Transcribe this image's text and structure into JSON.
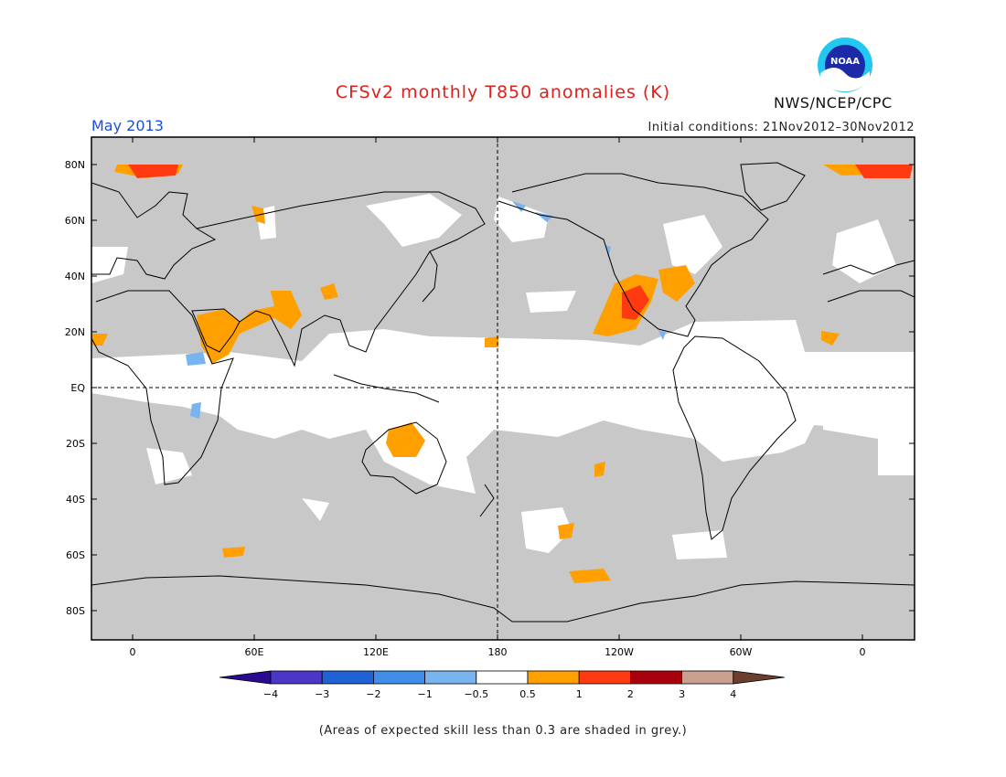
{
  "header": {
    "title": "CFSv2 monthly T850 anomalies (K)",
    "month": "May 2013",
    "initial_conditions": "Initial conditions: 21Nov2012–30Nov2012",
    "agency": "NWS/NCEP/CPC",
    "logo_text": "NOAA"
  },
  "map": {
    "lat_ticks": [
      "80N",
      "60N",
      "40N",
      "20N",
      "EQ",
      "20S",
      "40S",
      "60S",
      "80S"
    ],
    "lon_ticks": [
      "0",
      "60E",
      "120E",
      "180",
      "120W",
      "60W",
      "0"
    ],
    "colors": {
      "skill_grey": "#c8c8c8",
      "neutral": "#ffffff",
      "orange": "#ffa000",
      "red_orange": "#ff3a10",
      "light_blue": "#78b4f0",
      "land_line": "#000000"
    },
    "anomaly_regions": [
      {
        "name": "arctic-greenland-west",
        "category": "1 to 2"
      },
      {
        "name": "arctic-greenland-east",
        "category": "1 to 2"
      },
      {
        "name": "arabia-horn-africa",
        "category": "0.5 to 1"
      },
      {
        "name": "central-asia",
        "category": "0.5 to 1"
      },
      {
        "name": "australia",
        "category": "0.5 to 1"
      },
      {
        "name": "western-north-america",
        "category": "1 to 2"
      },
      {
        "name": "eastern-north-america",
        "category": "0.5 to 1"
      },
      {
        "name": "southern-ocean",
        "category": "0.5 to 1"
      },
      {
        "name": "east-africa",
        "category": "-1 to -0.5"
      },
      {
        "name": "bering-alaska",
        "category": "-1 to -0.5"
      }
    ]
  },
  "colorbar": {
    "labels": [
      "−4",
      "−3",
      "−2",
      "−1",
      "−0.5",
      "0.5",
      "1",
      "2",
      "3",
      "4"
    ],
    "colors": [
      "#2a0a8e",
      "#4a37c8",
      "#1f62d6",
      "#3f8ee8",
      "#78b4f0",
      "#ffffff",
      "#ffa000",
      "#ff3a10",
      "#a8000c",
      "#c8a090",
      "#6b3e2e"
    ]
  },
  "footer": {
    "skill_note": "(Areas of expected skill less than 0.3 are shaded in grey.)"
  }
}
